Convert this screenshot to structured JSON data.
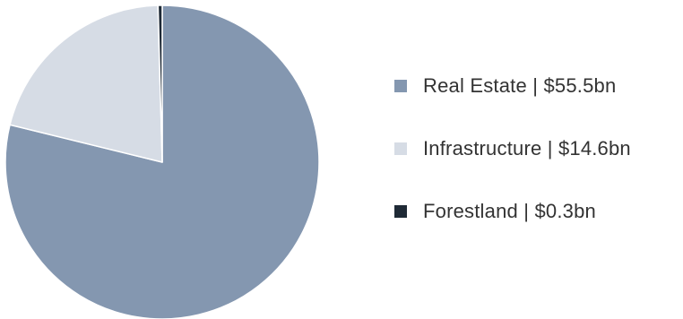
{
  "chart_data": {
    "type": "pie",
    "title": "",
    "categories": [
      "Real Estate",
      "Infrastructure",
      "Forestland"
    ],
    "values": [
      55.5,
      14.6,
      0.3
    ],
    "unit": "$bn",
    "colors": [
      "#8497b0",
      "#d6dce5",
      "#1f2a36"
    ],
    "legend_labels": [
      "Real Estate | $55.5bn",
      "Infrastructure | $14.6bn",
      "Forestland | $0.3bn"
    ],
    "legend_position": "right",
    "start_angle_deg": 0,
    "direction": "clockwise"
  }
}
